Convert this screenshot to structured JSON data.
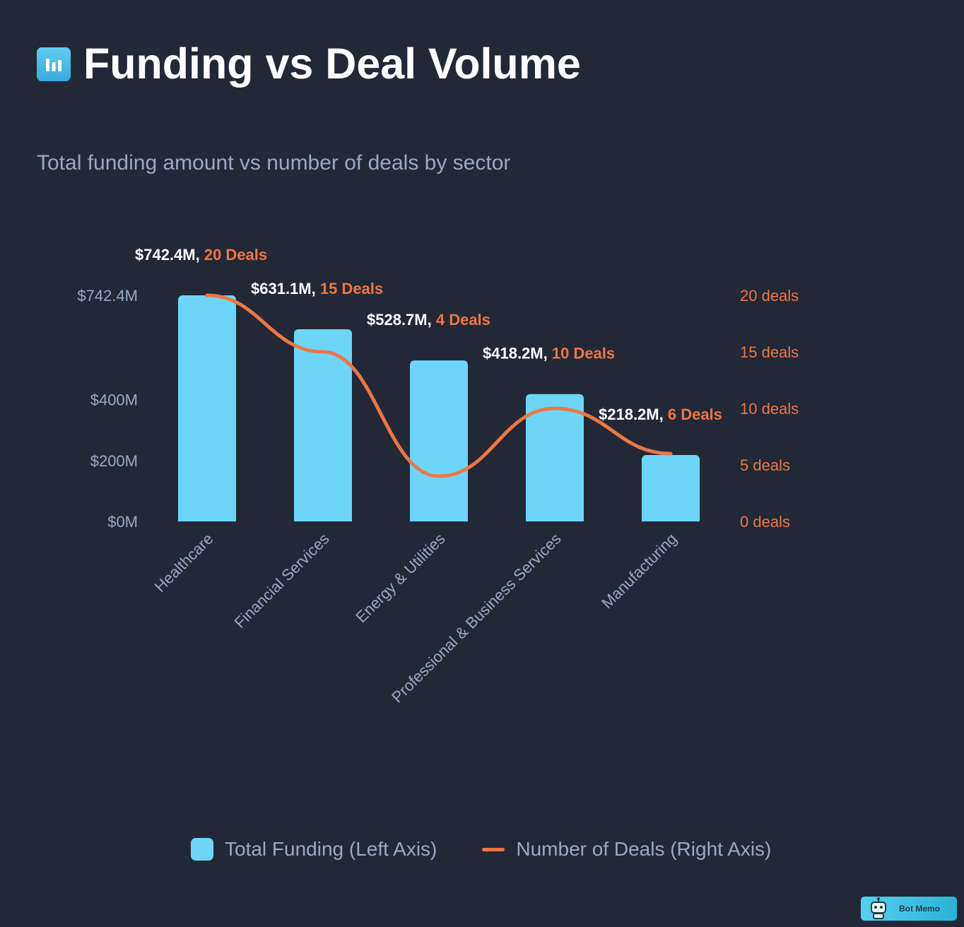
{
  "header": {
    "title": "Funding vs Deal Volume",
    "subtitle": "Total funding amount vs number of deals by sector",
    "icon": "bar-chart-icon"
  },
  "chart_data": {
    "type": "bar",
    "categories": [
      "Healthcare",
      "Financial Services",
      "Energy & Utilities",
      "Professional & Business Services",
      "Manufacturing"
    ],
    "series": [
      {
        "name": "Total Funding (Left Axis)",
        "type": "bar",
        "axis": "left",
        "values": [
          742.4,
          631.1,
          528.7,
          418.2,
          218.2
        ],
        "unit": "$M"
      },
      {
        "name": "Number of Deals (Right Axis)",
        "type": "line",
        "axis": "right",
        "values": [
          20,
          15,
          4,
          10,
          6
        ],
        "unit": "deals"
      }
    ],
    "left_axis": {
      "range": [
        0,
        742.4
      ],
      "ticks": [
        0,
        200,
        400,
        742.4
      ],
      "tick_labels": [
        "$0M",
        "$200M",
        "$400M",
        "$742.4M"
      ]
    },
    "right_axis": {
      "range": [
        0,
        20
      ],
      "ticks": [
        0,
        5,
        10,
        15,
        20
      ],
      "tick_labels": [
        "0 deals",
        "5 deals",
        "10 deals",
        "15 deals",
        "20 deals"
      ]
    },
    "data_labels": [
      {
        "funding": "$742.4M,",
        "deals": "20 Deals"
      },
      {
        "funding": "$631.1M,",
        "deals": "15 Deals"
      },
      {
        "funding": "$528.7M,",
        "deals": "4 Deals"
      },
      {
        "funding": "$418.2M,",
        "deals": "10 Deals"
      },
      {
        "funding": "$218.2M,",
        "deals": "6 Deals"
      }
    ],
    "grid": false,
    "legend_position": "bottom-center"
  },
  "legend": {
    "bar_label": "Total Funding (Left Axis)",
    "line_label": "Number of Deals (Right Axis)"
  },
  "colors": {
    "background": "#222836",
    "bar": "#6dd6f8",
    "line": "#ec7646",
    "axis_text": "#9aa9c4",
    "label_text": "#ffffff"
  },
  "brand": {
    "label": "Bot Memo",
    "icon": "robot-icon"
  }
}
